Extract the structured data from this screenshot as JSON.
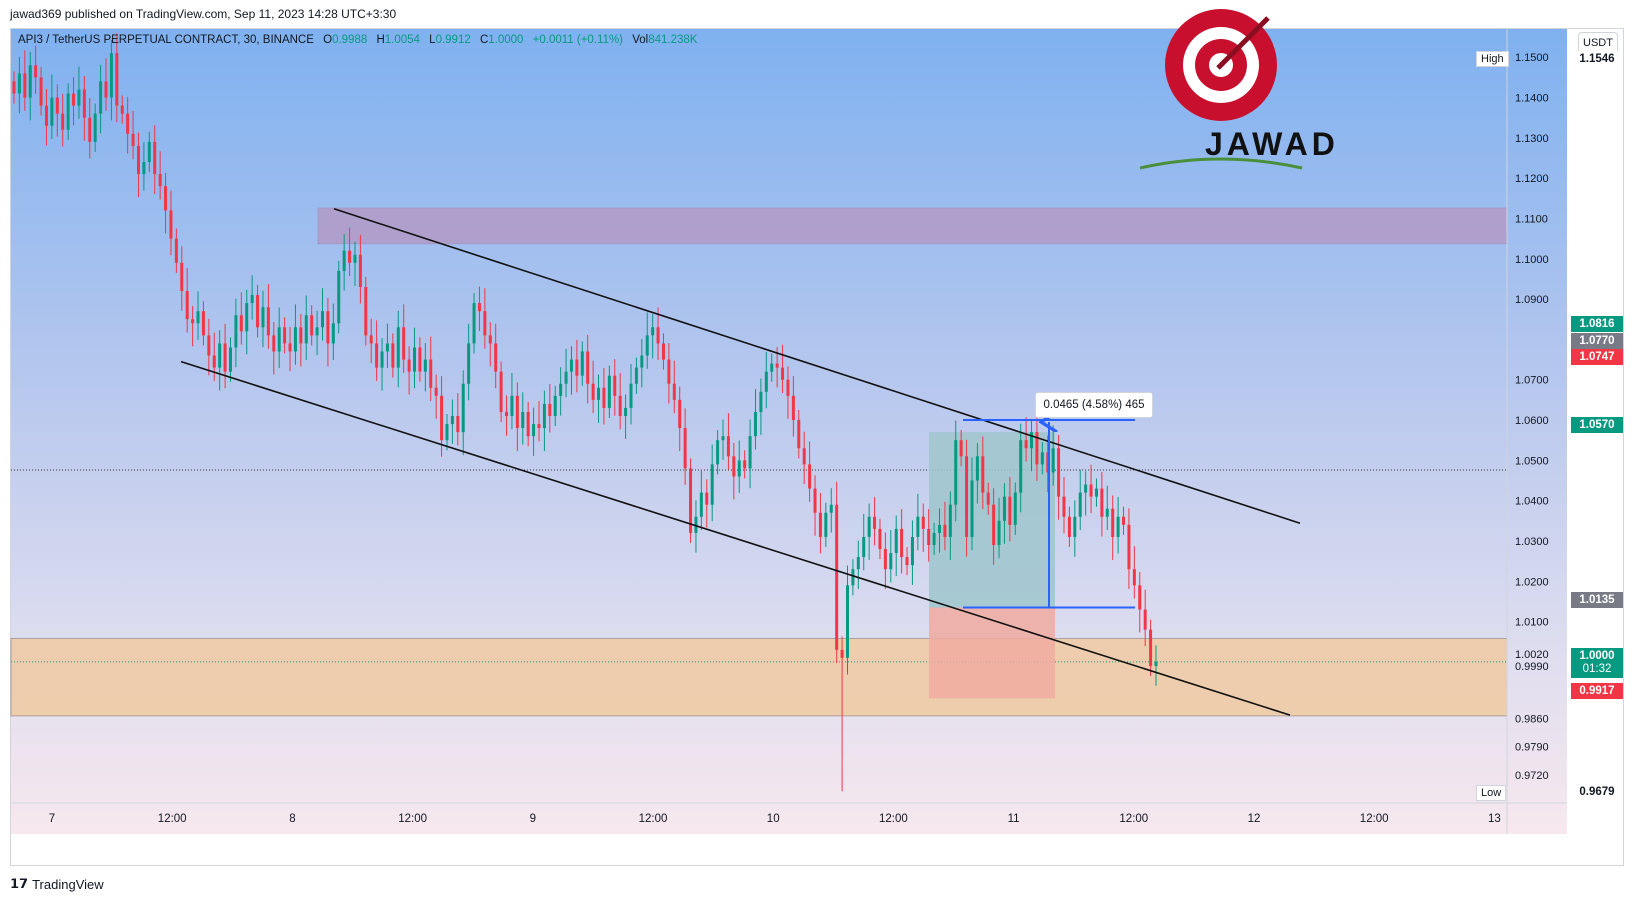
{
  "header": {
    "published_by": "jawad369 published on TradingView.com, Sep 11, 2023 14:28 UTC+3:30"
  },
  "legend": {
    "symbol": "API3 / TetherUS PERPETUAL CONTRACT, 30, BINANCE",
    "o_label": "O",
    "o_value": "0.9988",
    "h_label": "H",
    "h_value": "1.0054",
    "l_label": "L",
    "l_value": "0.9912",
    "c_label": "C",
    "c_value": "1.0000",
    "change": "+0.0011 (+0.11%)",
    "vol_label": "Vol",
    "vol_value": "841.238K"
  },
  "logo": {
    "text": "JAWAD"
  },
  "currency_button": "USDT",
  "measure_label": "0.0465 (4.58%) 465",
  "high_label": "High",
  "low_label": "Low",
  "price_tags": [
    {
      "value": "1.1546",
      "bg": "#ffffff",
      "fg": "#131722"
    },
    {
      "value": "1.0816",
      "bg": "#089981",
      "fg": "#ffffff"
    },
    {
      "value": "1.0770",
      "bg": "#787b86",
      "fg": "#ffffff"
    },
    {
      "value": "1.0747",
      "bg": "#f23645",
      "fg": "#ffffff"
    },
    {
      "value": "1.0570",
      "bg": "#089981",
      "fg": "#ffffff"
    },
    {
      "value": "1.0135",
      "bg": "#787b86",
      "fg": "#ffffff"
    },
    {
      "value": "1.0000",
      "sub": "01:32",
      "bg": "#089981",
      "fg": "#ffffff"
    },
    {
      "value": "0.9917",
      "bg": "#f23645",
      "fg": "#ffffff"
    },
    {
      "value": "0.9679",
      "bg": "#ffffff",
      "fg": "#131722"
    }
  ],
  "footer": {
    "brand": "TradingView"
  },
  "colors": {
    "bull": "#089981",
    "bear": "#f23645",
    "resistance_zone": "#b39ac6",
    "support_zone": "#efcca6",
    "target_zone": "#9fc5cc",
    "stop_zone": "#f0aaa0",
    "measure": "#2962ff"
  },
  "chart_data": {
    "type": "candlestick",
    "symbol": "API3 / TetherUS PERPETUAL CONTRACT",
    "interval": "30",
    "exchange": "BINANCE",
    "quote_currency": "USDT",
    "ylim": [
      0.965,
      1.157
    ],
    "y_ticks": [
      "1.1500",
      "1.1400",
      "1.1300",
      "1.1200",
      "1.1100",
      "1.1000",
      "1.0900",
      "1.0700",
      "1.0600",
      "1.0500",
      "1.0400",
      "1.0300",
      "1.0200",
      "1.0100",
      "1.0020",
      "0.9990",
      "0.9860",
      "0.9790",
      "0.9720"
    ],
    "x_ticks": [
      "7",
      "12:00",
      "8",
      "12:00",
      "9",
      "12:00",
      "10",
      "12:00",
      "11",
      "12:00",
      "12",
      "12:00",
      "13"
    ],
    "grid": false,
    "high": 1.1546,
    "low": 0.9679,
    "last": 1.0,
    "open": 0.9988,
    "close": 1.0,
    "volume": "841.238K",
    "closes": [
      1.141,
      1.146,
      1.14,
      1.148,
      1.145,
      1.138,
      1.133,
      1.14,
      1.136,
      1.132,
      1.141,
      1.138,
      1.142,
      1.135,
      1.129,
      1.136,
      1.144,
      1.14,
      1.151,
      1.138,
      1.136,
      1.131,
      1.128,
      1.121,
      1.124,
      1.129,
      1.121,
      1.118,
      1.112,
      1.105,
      1.099,
      1.092,
      1.085,
      1.084,
      1.087,
      1.081,
      1.076,
      1.073,
      1.079,
      1.072,
      1.078,
      1.086,
      1.082,
      1.089,
      1.091,
      1.083,
      1.088,
      1.081,
      1.077,
      1.083,
      1.079,
      1.077,
      1.083,
      1.079,
      1.086,
      1.081,
      1.083,
      1.087,
      1.079,
      1.084,
      1.097,
      1.102,
      1.099,
      1.101,
      1.093,
      1.081,
      1.079,
      1.073,
      1.077,
      1.079,
      1.073,
      1.083,
      1.075,
      1.072,
      1.078,
      1.072,
      1.075,
      1.068,
      1.066,
      1.055,
      1.059,
      1.061,
      1.057,
      1.069,
      1.079,
      1.089,
      1.087,
      1.081,
      1.079,
      1.072,
      1.062,
      1.061,
      1.066,
      1.058,
      1.062,
      1.056,
      1.059,
      1.058,
      1.064,
      1.061,
      1.066,
      1.069,
      1.072,
      1.075,
      1.071,
      1.077,
      1.069,
      1.065,
      1.068,
      1.063,
      1.071,
      1.066,
      1.061,
      1.063,
      1.069,
      1.073,
      1.076,
      1.081,
      1.083,
      1.079,
      1.075,
      1.069,
      1.065,
      1.058,
      1.048,
      1.032,
      1.036,
      1.042,
      1.039,
      1.049,
      1.055,
      1.056,
      1.051,
      1.046,
      1.05,
      1.048,
      1.056,
      1.062,
      1.067,
      1.072,
      1.074,
      1.073,
      1.07,
      1.066,
      1.06,
      1.053,
      1.049,
      1.043,
      1.037,
      1.031,
      1.037,
      1.039,
      1.003,
      1.001,
      1.019,
      1.023,
      1.026,
      1.031,
      1.036,
      1.033,
      1.028,
      1.023,
      1.027,
      1.033,
      1.026,
      1.024,
      1.031,
      1.036,
      1.033,
      1.029,
      1.032,
      1.034,
      1.031,
      1.039,
      1.055,
      1.051,
      1.031,
      1.045,
      1.051,
      1.042,
      1.039,
      1.029,
      1.035,
      1.041,
      1.034,
      1.042,
      1.055,
      1.053,
      1.057,
      1.049,
      1.052,
      1.047,
      1.053,
      1.041,
      1.036,
      1.031,
      1.036,
      1.042,
      1.044,
      1.041,
      1.043,
      1.036,
      1.038,
      1.031,
      1.036,
      1.034,
      1.023,
      1.019,
      1.013,
      1.008,
      0.999,
      1.0
    ],
    "series": [
      {
        "type": "horizontal_zone",
        "from": 1.1037,
        "to": 1.1126
      },
      {
        "type": "horizontal_zone",
        "from": 0.9866,
        "to": 1.0058
      },
      {
        "type": "trendline",
        "points": [
          [
            1.1124
          ],
          [
            1.0344
          ]
        ]
      },
      {
        "type": "trendline",
        "points": [
          [
            1.0745
          ],
          [
            0.9868
          ]
        ]
      },
      {
        "type": "long_position",
        "entry": 1.0135,
        "target": 1.057,
        "stop": 0.991
      },
      {
        "type": "measure",
        "from": 1.0135,
        "to": 1.06,
        "label": "0.0465 (4.58%) 465"
      }
    ]
  }
}
